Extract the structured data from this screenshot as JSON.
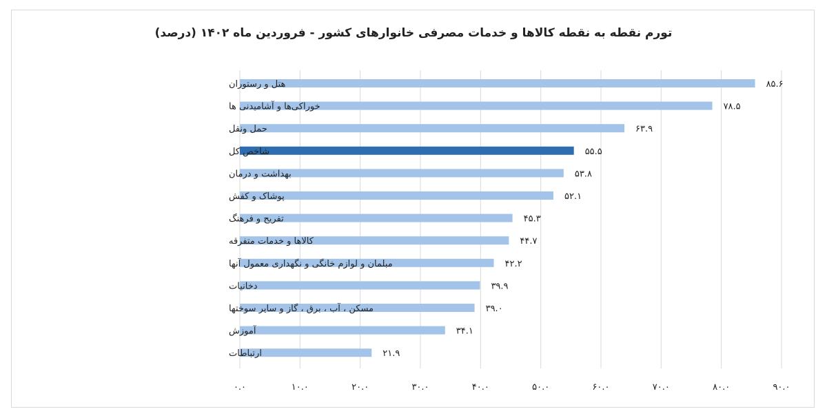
{
  "chart_data": {
    "type": "bar",
    "orientation": "horizontal",
    "title": "تورم نقطه به نقطه کالاها و خدمات مصرفی خانوارهای کشور - فروردین ماه ۱۴۰۲ (درصد)",
    "categories": [
      "هتل و رستوران",
      "خوراکی‌ها و آشامیدنی ها",
      "حمل ونقل",
      "شاخص کل",
      "بهداشت و درمان",
      "پوشاک و کفش",
      "تفریح و فرهنگ",
      "کالاها و خدمات متفرقه",
      "مبلمان و لوازم خانگی و نگهداری معمول آنها",
      "دخانیات",
      "مسکن ، آب ، برق ، گاز و سایر سوختها",
      "آموزش",
      "ارتباطات"
    ],
    "values": [
      85.6,
      78.5,
      63.9,
      55.5,
      53.8,
      52.1,
      45.3,
      44.7,
      42.2,
      39.9,
      39.0,
      34.1,
      21.9
    ],
    "value_labels": [
      "۸۵.۶",
      "۷۸.۵",
      "۶۳.۹",
      "۵۵.۵",
      "۵۳.۸",
      "۵۲.۱",
      "۴۵.۳",
      "۴۴.۷",
      "۴۲.۲",
      "۳۹.۹",
      "۳۹.۰",
      "۳۴.۱",
      "۲۱.۹"
    ],
    "highlight_index": 3,
    "xlim": [
      0,
      90
    ],
    "x_ticks": [
      0,
      10,
      20,
      30,
      40,
      50,
      60,
      70,
      80,
      90
    ],
    "x_tick_labels": [
      "۰.۰",
      "۱۰.۰",
      "۲۰.۰",
      "۳۰.۰",
      "۴۰.۰",
      "۵۰.۰",
      "۶۰.۰",
      "۷۰.۰",
      "۸۰.۰",
      "۹۰.۰"
    ],
    "grid": true,
    "colors": {
      "bar": "#a3c4e8",
      "highlight": "#2e6eb0",
      "grid": "#d9d9d9"
    }
  }
}
